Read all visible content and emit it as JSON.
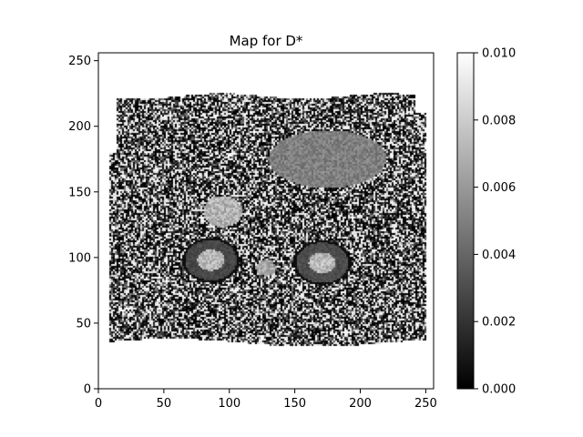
{
  "chart_data": {
    "type": "heatmap",
    "title": "Map for D*",
    "xlabel": "",
    "ylabel": "",
    "xlim": [
      0,
      256
    ],
    "ylim": [
      0,
      256
    ],
    "x_ticks": [
      0,
      50,
      100,
      150,
      200,
      250
    ],
    "y_ticks": [
      0,
      50,
      100,
      150,
      200,
      250
    ],
    "colormap": "gray",
    "colorbar": {
      "min": 0.0,
      "max": 0.01,
      "ticks": [
        "0.000",
        "0.002",
        "0.004",
        "0.006",
        "0.008",
        "0.010"
      ]
    },
    "grid": false,
    "image_region": {
      "x_range": [
        8,
        250
      ],
      "y_range": [
        35,
        223
      ],
      "background_value": 0.0,
      "features": [
        {
          "name": "right-kidney",
          "cx": 86,
          "cy": 98,
          "rx": 22,
          "ry": 17,
          "value": 0.0028,
          "hilum_value": 0.0085
        },
        {
          "name": "left-kidney",
          "cx": 171,
          "cy": 96,
          "rx": 22,
          "ry": 17,
          "value": 0.003,
          "hilum_value": 0.0085
        },
        {
          "name": "spine",
          "cx": 128,
          "cy": 92,
          "rx": 8,
          "ry": 6,
          "value": 0.0065
        },
        {
          "name": "liver-band",
          "cx": 175,
          "cy": 175,
          "rx": 45,
          "ry": 22,
          "value": 0.005
        },
        {
          "name": "bright-structure",
          "cx": 95,
          "cy": 135,
          "rx": 15,
          "ry": 12,
          "value": 0.007
        }
      ]
    }
  }
}
